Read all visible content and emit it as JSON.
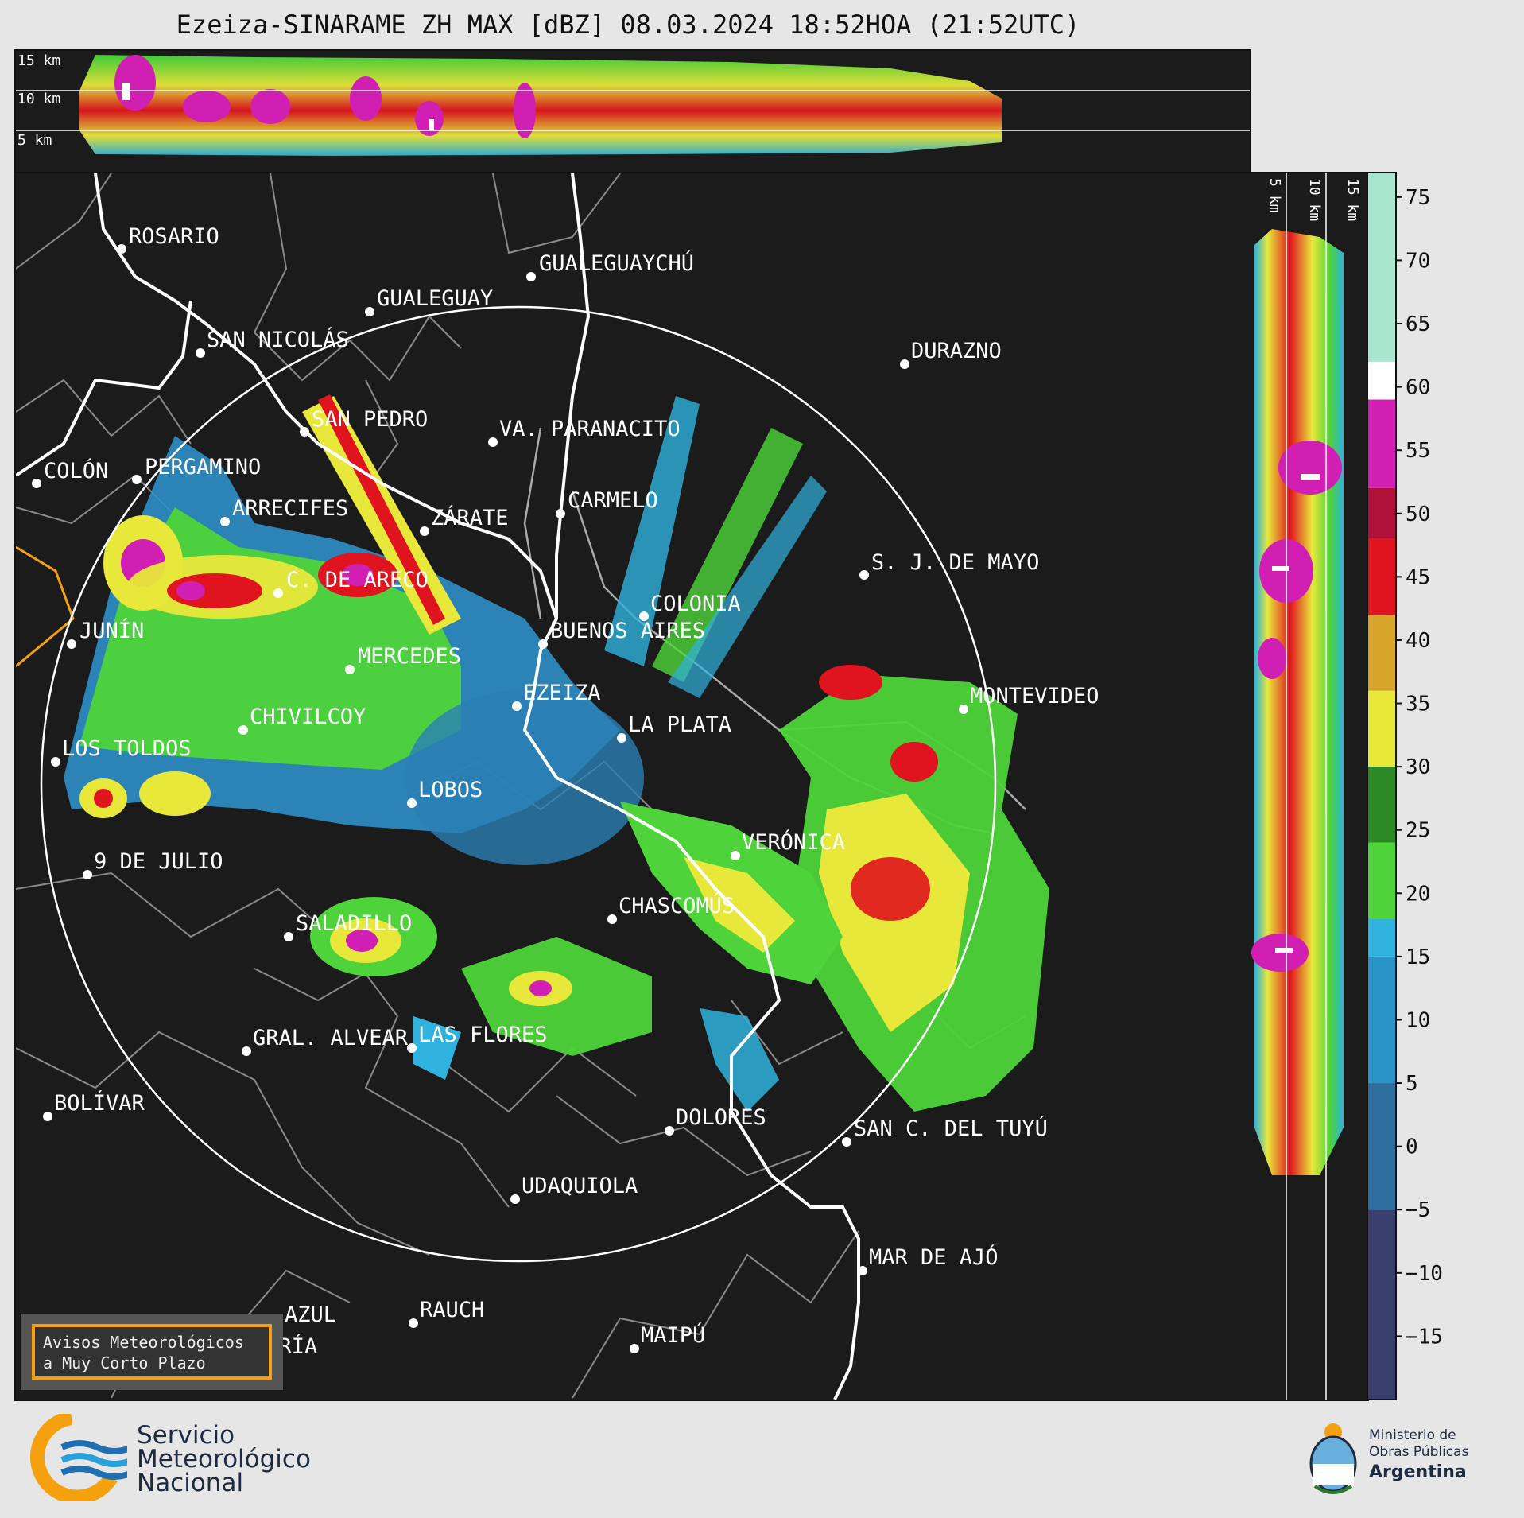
{
  "title": "Ezeiza-SINARAME ZH MAX [dBZ] 08.03.2024 18:52HOA (21:52UTC)",
  "top_section": {
    "height_labels": [
      "15 km",
      "10 km",
      "5 km"
    ]
  },
  "side_section": {
    "height_labels": [
      "5 km",
      "10 km",
      "15 km"
    ]
  },
  "colorbar": {
    "unit": "dBZ",
    "ticks": [
      "75",
      "70",
      "65",
      "60",
      "55",
      "50",
      "45",
      "40",
      "35",
      "30",
      "25",
      "20",
      "15",
      "10",
      "5",
      "0",
      "−5",
      "−10",
      "−15"
    ],
    "range": [
      -20,
      77
    ],
    "bands": [
      {
        "from": -20,
        "to": -5,
        "color": "#3b3f6d"
      },
      {
        "from": -5,
        "to": 5,
        "color": "#2e6e9e"
      },
      {
        "from": 5,
        "to": 15,
        "color": "#2a94c8"
      },
      {
        "from": 15,
        "to": 18,
        "color": "#2fb2dd"
      },
      {
        "from": 18,
        "to": 24,
        "color": "#4ed43a"
      },
      {
        "from": 24,
        "to": 30,
        "color": "#2b8a26"
      },
      {
        "from": 30,
        "to": 36,
        "color": "#e8e83a"
      },
      {
        "from": 36,
        "to": 42,
        "color": "#d6a52a"
      },
      {
        "from": 42,
        "to": 48,
        "color": "#e0141e"
      },
      {
        "from": 48,
        "to": 52,
        "color": "#b0103a"
      },
      {
        "from": 52,
        "to": 59,
        "color": "#d11fb4"
      },
      {
        "from": 59,
        "to": 62,
        "color": "#ffffff"
      },
      {
        "from": 62,
        "to": 77,
        "color": "#a8e6cf"
      }
    ]
  },
  "cities": [
    {
      "name": "ROSARIO"
    },
    {
      "name": "GUALEGUAYCHÚ"
    },
    {
      "name": "GUALEGUAY"
    },
    {
      "name": "SAN NICOLÁS"
    },
    {
      "name": "DURAZNO"
    },
    {
      "name": "SAN PEDRO"
    },
    {
      "name": "VA. PARANACITO"
    },
    {
      "name": "COLÓN"
    },
    {
      "name": "PERGAMINO"
    },
    {
      "name": "CARMELO"
    },
    {
      "name": "ARRECIFES"
    },
    {
      "name": "ZÁRATE"
    },
    {
      "name": "S. J. DE MAYO"
    },
    {
      "name": "C. DE ARECO"
    },
    {
      "name": "COLONIA"
    },
    {
      "name": "BUENOS AIRES"
    },
    {
      "name": "JUNÍN"
    },
    {
      "name": "MERCEDES"
    },
    {
      "name": "EZEIZA"
    },
    {
      "name": "MONTEVIDEO"
    },
    {
      "name": "CHIVILCOY"
    },
    {
      "name": "LA PLATA"
    },
    {
      "name": "LOS TOLDOS"
    },
    {
      "name": "LOBOS"
    },
    {
      "name": "VERÓNICA"
    },
    {
      "name": "9 DE JULIO"
    },
    {
      "name": "CHASCOMÚS"
    },
    {
      "name": "SALADILLO"
    },
    {
      "name": "GRAL. ALVEAR"
    },
    {
      "name": "LAS FLORES"
    },
    {
      "name": "BOLÍVAR"
    },
    {
      "name": "DOLORES"
    },
    {
      "name": "SAN C. DEL TUYÚ"
    },
    {
      "name": "UDAQUIOLA"
    },
    {
      "name": "MAR DE AJÓ"
    },
    {
      "name": "RAUCH"
    },
    {
      "name": "AZUL"
    },
    {
      "name": "OLAVARRÍA"
    },
    {
      "name": "MAIPÚ"
    }
  ],
  "avisos": {
    "line1": "Avisos Meteorológicos",
    "line2": "a Muy Corto Plazo"
  },
  "smn_logo": {
    "line1": "Servicio",
    "line2": "Meteorológico",
    "line3": "Nacional"
  },
  "ministry_logo": {
    "line1": "Ministerio de",
    "line2": "Obras Públicas",
    "line3": "Argentina"
  },
  "colors": {
    "background_map": "#1b1b1b",
    "range_ring": "#ffffff",
    "rivers": "#ffffff",
    "borders": "#8a8a8a",
    "border_orange": "#f5a10f"
  }
}
